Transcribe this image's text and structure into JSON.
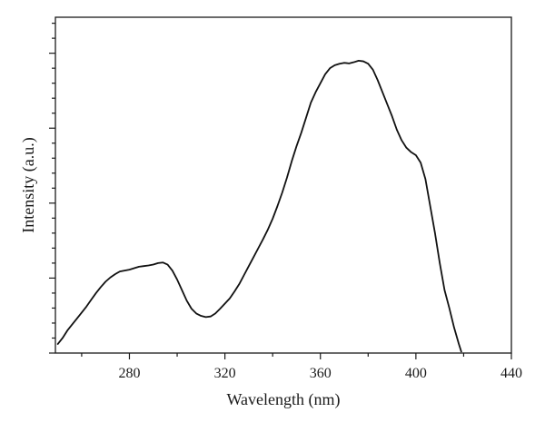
{
  "chart_data": {
    "type": "line",
    "title": "",
    "xlabel": "Wavelength (nm)",
    "ylabel": "Intensity (a.u.)",
    "xlim": [
      249,
      440
    ],
    "ylim": [
      0,
      1.12
    ],
    "x_ticks": [
      280,
      320,
      360,
      400,
      440
    ],
    "x_tick_labels": [
      "280",
      "320",
      "360",
      "400",
      "440"
    ],
    "y_ticks": [
      0.0,
      0.25,
      0.5,
      0.75,
      1.0
    ],
    "y_tick_labels": [],
    "grid": false,
    "legend": "none",
    "series": [
      {
        "color": "#111111",
        "x": [
          250,
          252,
          254,
          256,
          258,
          260,
          262,
          264,
          266,
          268,
          270,
          272,
          274,
          276,
          278,
          280,
          282,
          284,
          286,
          288,
          290,
          292,
          294,
          296,
          298,
          300,
          302,
          304,
          306,
          308,
          310,
          312,
          314,
          316,
          318,
          320,
          322,
          324,
          326,
          328,
          330,
          332,
          334,
          336,
          338,
          340,
          342,
          344,
          346,
          348,
          350,
          352,
          354,
          356,
          358,
          360,
          362,
          364,
          366,
          368,
          370,
          372,
          374,
          376,
          378,
          380,
          382,
          384,
          386,
          388,
          390,
          392,
          394,
          396,
          398,
          400,
          402,
          404,
          406,
          408,
          410,
          412,
          414,
          416,
          418,
          419
        ],
        "y": [
          0.03,
          0.05,
          0.075,
          0.095,
          0.115,
          0.135,
          0.155,
          0.178,
          0.2,
          0.22,
          0.238,
          0.252,
          0.263,
          0.272,
          0.275,
          0.278,
          0.283,
          0.288,
          0.29,
          0.292,
          0.295,
          0.3,
          0.302,
          0.295,
          0.275,
          0.245,
          0.21,
          0.175,
          0.148,
          0.132,
          0.124,
          0.12,
          0.122,
          0.132,
          0.148,
          0.165,
          0.182,
          0.205,
          0.23,
          0.26,
          0.29,
          0.32,
          0.35,
          0.38,
          0.412,
          0.448,
          0.49,
          0.535,
          0.585,
          0.64,
          0.69,
          0.735,
          0.785,
          0.835,
          0.87,
          0.9,
          0.93,
          0.95,
          0.96,
          0.965,
          0.968,
          0.966,
          0.97,
          0.975,
          0.973,
          0.965,
          0.945,
          0.91,
          0.87,
          0.83,
          0.79,
          0.745,
          0.71,
          0.685,
          0.67,
          0.66,
          0.635,
          0.58,
          0.49,
          0.4,
          0.3,
          0.21,
          0.15,
          0.085,
          0.03,
          0.005
        ]
      }
    ]
  }
}
